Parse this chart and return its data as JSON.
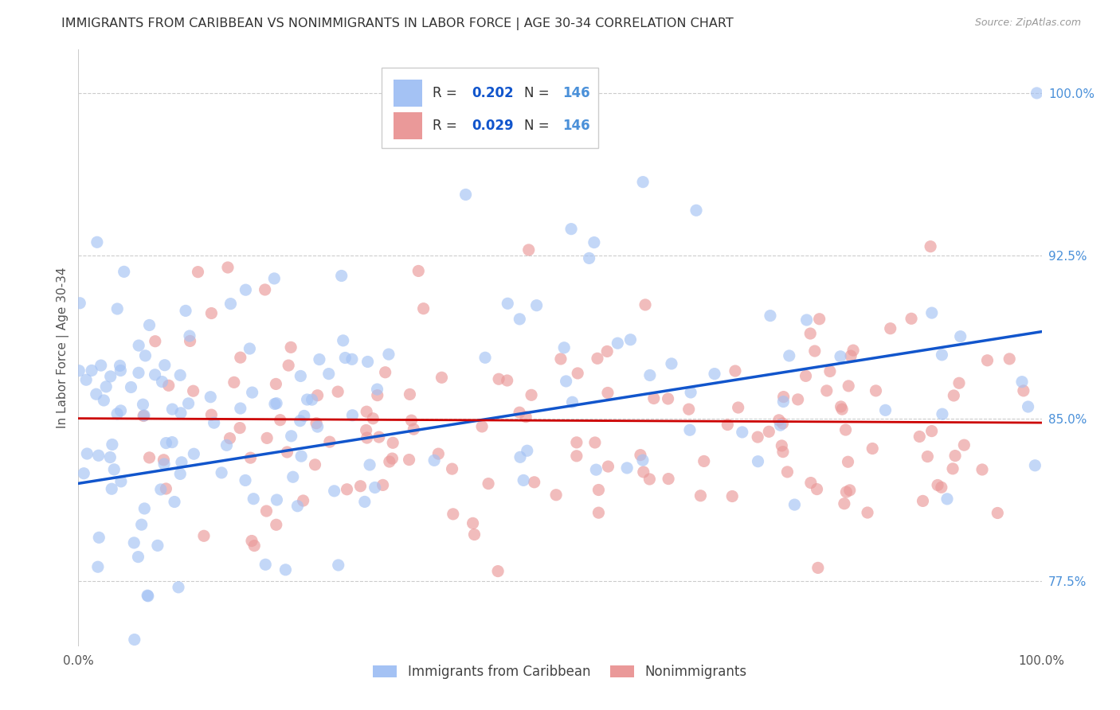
{
  "title": "IMMIGRANTS FROM CARIBBEAN VS NONIMMIGRANTS IN LABOR FORCE | AGE 30-34 CORRELATION CHART",
  "source": "Source: ZipAtlas.com",
  "ylabel": "In Labor Force | Age 30-34",
  "xlim": [
    0.0,
    1.0
  ],
  "ylim": [
    0.745,
    1.02
  ],
  "x_ticks": [
    0.0,
    0.25,
    0.5,
    0.75,
    1.0
  ],
  "x_tick_labels": [
    "0.0%",
    "",
    "",
    "",
    "100.0%"
  ],
  "y_tick_labels_right": [
    "77.5%",
    "85.0%",
    "92.5%",
    "100.0%"
  ],
  "y_tick_vals_right": [
    0.775,
    0.85,
    0.925,
    1.0
  ],
  "blue_R": "0.202",
  "blue_N": "146",
  "pink_R": "0.029",
  "pink_N": "146",
  "blue_color": "#a4c2f4",
  "pink_color": "#ea9999",
  "blue_line_color": "#1155cc",
  "pink_line_color": "#cc0000",
  "title_color": "#333333",
  "right_tick_color": "#4a90d9",
  "background_color": "#ffffff",
  "grid_color": "#cccccc",
  "legend_R_color": "#1155cc",
  "legend_N_color": "#4a90d9",
  "blue_line_start_y": 0.82,
  "blue_line_end_y": 0.89,
  "pink_line_start_y": 0.85,
  "pink_line_end_y": 0.848
}
